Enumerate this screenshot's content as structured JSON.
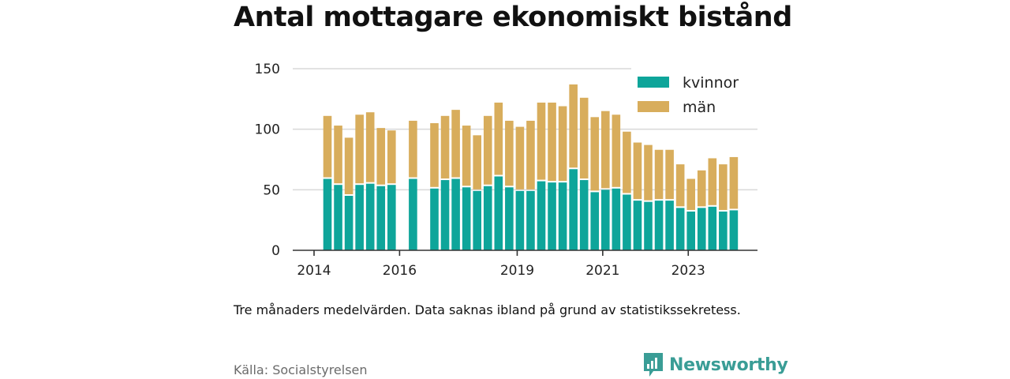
{
  "title": "Antal mottagare ekonomiskt bistånd",
  "note": "Tre månaders medelvärden. Data saknas ibland på grund av statistikssekretess.",
  "source": "Källa: Socialstyrelsen",
  "brand": "Newsworthy",
  "colors": {
    "kvinnor": "#0ea59a",
    "man": "#d8ad5c",
    "grid": "#d9d9d9",
    "axis": "#333333",
    "brand": "#3a9d96"
  },
  "icons": {
    "brand_logo": "bar-chart-speech-bubble-icon"
  },
  "chart_data": {
    "type": "bar",
    "stacked": true,
    "x_tick_labels": [
      "2014",
      "2016",
      "2019",
      "2021",
      "2023"
    ],
    "y_ticks": [
      0,
      50,
      100,
      150
    ],
    "ylim": [
      0,
      150
    ],
    "grid": true,
    "legend_position": "top-right",
    "series": [
      {
        "name": "kvinnor",
        "color": "#0ea59a",
        "values": [
          59,
          54,
          45,
          54,
          55,
          53,
          54,
          null,
          59,
          null,
          51,
          58,
          59,
          52,
          49,
          53,
          61,
          52,
          49,
          49,
          57,
          56,
          56,
          67,
          58,
          48,
          50,
          51,
          46,
          41,
          40,
          41,
          41,
          35,
          32,
          35,
          36,
          32,
          33
        ]
      },
      {
        "name": "män",
        "color": "#d8ad5c",
        "values": [
          52,
          49,
          48,
          58,
          59,
          48,
          45,
          null,
          48,
          null,
          54,
          53,
          57,
          51,
          46,
          58,
          61,
          55,
          53,
          58,
          65,
          66,
          63,
          70,
          68,
          62,
          65,
          61,
          52,
          48,
          47,
          42,
          42,
          36,
          27,
          31,
          40,
          39,
          44
        ]
      }
    ]
  }
}
